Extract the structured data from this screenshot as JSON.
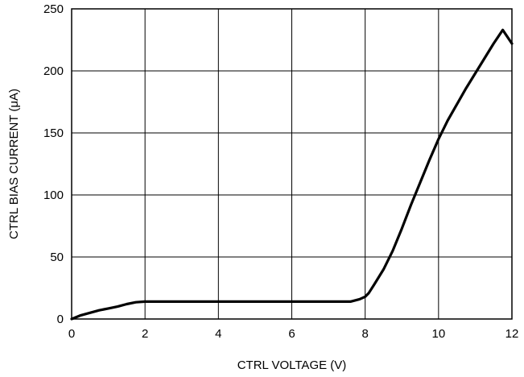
{
  "chart_data": {
    "type": "line",
    "xlabel": "CTRL VOLTAGE (V)",
    "ylabel": "CTRL BIAS CURRENT (μA)",
    "xlim": [
      0,
      12
    ],
    "ylim": [
      0,
      250
    ],
    "xticks": [
      0,
      2,
      4,
      6,
      8,
      10,
      12
    ],
    "yticks": [
      0,
      50,
      100,
      150,
      200,
      250
    ],
    "xtick_labels": [
      "0",
      "2",
      "4",
      "6",
      "8",
      "10",
      "12"
    ],
    "ytick_labels": [
      "0",
      "50",
      "100",
      "150",
      "200",
      "250"
    ],
    "grid": true,
    "series": [
      {
        "x": [
          0,
          0.25,
          0.5,
          0.75,
          1.0,
          1.25,
          1.5,
          1.75,
          2.0,
          3.0,
          4.0,
          5.0,
          6.0,
          7.0,
          7.6,
          7.85,
          8.0,
          8.1,
          8.25,
          8.5,
          8.75,
          9.0,
          9.25,
          9.5,
          9.75,
          10.0,
          10.25,
          10.5,
          10.75,
          11.0,
          11.25,
          11.5,
          11.75,
          12.0
        ],
        "y": [
          0,
          3,
          5,
          7,
          8.5,
          10,
          12,
          13.5,
          14,
          14,
          14,
          14,
          14,
          14,
          14,
          16,
          18,
          21,
          28,
          40,
          55,
          73,
          92,
          110,
          128,
          145,
          160,
          173,
          186,
          198,
          210,
          222,
          233,
          222
        ],
        "color": "#000000"
      }
    ]
  }
}
